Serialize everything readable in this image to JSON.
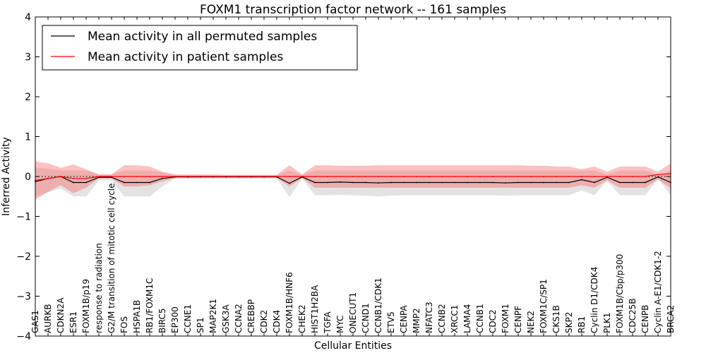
{
  "chart_data": {
    "type": "line",
    "title": "FOXM1 transcription factor network -- 161 samples",
    "xlabel": "Cellular Entities",
    "ylabel": "Inferred Activity",
    "ylim": [
      -4,
      4
    ],
    "yticks": [
      -4,
      -3,
      -2,
      -1,
      0,
      1,
      2,
      3,
      4
    ],
    "ytick_labels": [
      "−4",
      "−3",
      "−2",
      "−1",
      "0",
      "1",
      "2",
      "3",
      "4"
    ],
    "categories": [
      "GAS1",
      "AURKB",
      "CDKN2A",
      "ESR1",
      "FOXM1B/p19",
      "response to radiation",
      "G2/M transition of mitotic cell cycle",
      "FOS",
      "HSPA1B",
      "RB1/FOXM1C",
      "BIRC5",
      "EP300",
      "CCNE1",
      "SP1",
      "MAP2K1",
      "GSK3A",
      "CCNA2",
      "CREBBP",
      "CDK2",
      "CDK4",
      "FOXM1B/HNF6",
      "CHEK2",
      "HIST1H2BA",
      "TGFA",
      "MYC",
      "ONECUT1",
      "CCND1",
      "CCNB1/CDK1",
      "ETV5",
      "CENPA",
      "MMP2",
      "NFATC3",
      "CCNB2",
      "XRCC1",
      "LAMA4",
      "CCNB1",
      "CDC2",
      "FOXM1",
      "CENPF",
      "NEK2",
      "FOXM1C/SP1",
      "CKS1B",
      "SKP2",
      "RB1",
      "Cyclin D1/CDK4",
      "PLK1",
      "FOXM1B/Cbp/p300",
      "CDC25B",
      "CENPB",
      "Cyclin A-E1/CDK1-2",
      "BRCA2"
    ],
    "legend": {
      "placement": "top-left",
      "entries": [
        "Mean activity in all permuted samples",
        "Mean activity in patient samples"
      ]
    },
    "series": [
      {
        "name": "Mean activity in all permuted samples",
        "color": "#000000",
        "values": [
          -0.13,
          -0.05,
          0.0,
          -0.15,
          -0.15,
          -0.02,
          -0.02,
          -0.15,
          -0.15,
          -0.15,
          -0.05,
          -0.01,
          -0.01,
          -0.01,
          -0.01,
          -0.01,
          -0.01,
          -0.01,
          -0.01,
          -0.01,
          -0.17,
          -0.01,
          -0.15,
          -0.15,
          -0.14,
          -0.15,
          -0.15,
          -0.16,
          -0.15,
          -0.15,
          -0.15,
          -0.15,
          -0.15,
          -0.15,
          -0.15,
          -0.15,
          -0.15,
          -0.16,
          -0.15,
          -0.15,
          -0.15,
          -0.15,
          -0.15,
          -0.08,
          -0.15,
          -0.02,
          -0.15,
          -0.15,
          -0.15,
          -0.01,
          -0.15
        ],
        "band_lower": [
          -0.5,
          -0.4,
          -0.3,
          -0.5,
          -0.5,
          -0.1,
          -0.1,
          -0.5,
          -0.5,
          -0.5,
          -0.25,
          -0.05,
          -0.05,
          -0.05,
          -0.05,
          -0.05,
          -0.05,
          -0.05,
          -0.05,
          -0.05,
          -0.52,
          -0.05,
          -0.47,
          -0.47,
          -0.46,
          -0.47,
          -0.48,
          -0.5,
          -0.48,
          -0.47,
          -0.47,
          -0.47,
          -0.47,
          -0.47,
          -0.47,
          -0.47,
          -0.47,
          -0.48,
          -0.47,
          -0.47,
          -0.47,
          -0.47,
          -0.47,
          -0.35,
          -0.47,
          -0.1,
          -0.47,
          -0.47,
          -0.47,
          -0.05,
          -0.47
        ],
        "band_upper": [
          0.22,
          0.2,
          0.15,
          0.15,
          0.15,
          0.05,
          0.05,
          0.15,
          0.15,
          0.15,
          0.1,
          0.03,
          0.03,
          0.03,
          0.03,
          0.03,
          0.03,
          0.03,
          0.03,
          0.03,
          0.15,
          0.03,
          0.15,
          0.15,
          0.15,
          0.15,
          0.15,
          0.15,
          0.15,
          0.15,
          0.15,
          0.15,
          0.15,
          0.15,
          0.15,
          0.15,
          0.15,
          0.15,
          0.15,
          0.15,
          0.15,
          0.15,
          0.15,
          0.15,
          0.15,
          0.05,
          0.15,
          0.15,
          0.15,
          0.03,
          0.15
        ]
      },
      {
        "name": "Mean activity in patient samples",
        "color": "#ff0000",
        "values": [
          -0.1,
          -0.05,
          0.0,
          -0.05,
          -0.05,
          0.0,
          0.0,
          0.0,
          0.0,
          0.0,
          0.0,
          0.0,
          0.0,
          0.0,
          0.0,
          0.0,
          0.0,
          0.0,
          0.0,
          0.0,
          0.0,
          0.0,
          0.0,
          0.0,
          0.0,
          0.0,
          0.0,
          0.0,
          0.0,
          0.0,
          0.0,
          0.0,
          0.0,
          0.0,
          0.0,
          0.0,
          0.0,
          0.0,
          0.0,
          0.0,
          0.0,
          0.0,
          0.0,
          0.0,
          0.0,
          0.0,
          0.0,
          0.0,
          0.0,
          0.05,
          0.07
        ],
        "band_lower": [
          -0.58,
          -0.38,
          -0.22,
          -0.42,
          -0.28,
          -0.05,
          -0.05,
          -0.25,
          -0.25,
          -0.22,
          -0.12,
          -0.04,
          -0.04,
          -0.03,
          -0.03,
          -0.03,
          -0.03,
          -0.03,
          -0.03,
          -0.03,
          -0.25,
          -0.04,
          -0.28,
          -0.28,
          -0.28,
          -0.28,
          -0.28,
          -0.28,
          -0.28,
          -0.28,
          -0.28,
          -0.28,
          -0.28,
          -0.28,
          -0.28,
          -0.28,
          -0.28,
          -0.28,
          -0.28,
          -0.28,
          -0.28,
          -0.28,
          -0.28,
          -0.22,
          -0.28,
          -0.1,
          -0.28,
          -0.28,
          -0.28,
          -0.08,
          -0.3
        ],
        "band_upper": [
          0.38,
          0.33,
          0.22,
          0.3,
          0.18,
          0.05,
          0.05,
          0.28,
          0.28,
          0.25,
          0.12,
          0.05,
          0.05,
          0.05,
          0.05,
          0.04,
          0.04,
          0.04,
          0.04,
          0.04,
          0.28,
          0.05,
          0.28,
          0.28,
          0.27,
          0.27,
          0.27,
          0.28,
          0.28,
          0.28,
          0.28,
          0.28,
          0.28,
          0.28,
          0.28,
          0.28,
          0.28,
          0.28,
          0.28,
          0.27,
          0.27,
          0.25,
          0.25,
          0.18,
          0.25,
          0.12,
          0.25,
          0.25,
          0.25,
          0.12,
          0.33
        ]
      }
    ],
    "reference_line": {
      "value": 0,
      "style": "dotted"
    },
    "grid": false
  }
}
